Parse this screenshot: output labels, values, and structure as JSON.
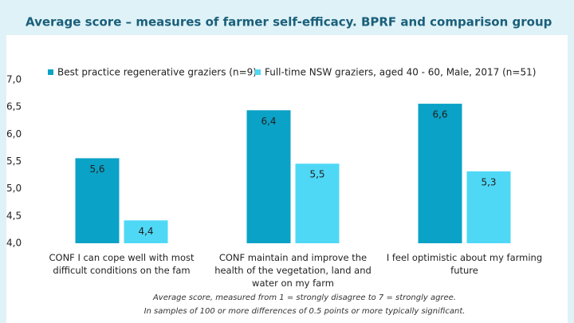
{
  "chart_data": {
    "type": "bar",
    "title": "Average score – measures of farmer self-efficacy. BPRF and comparison group",
    "categories": [
      "CONF I can cope well with most difficult conditions on the fam",
      "CONF maintain and improve the health of the vegetation, land and water on my farm",
      "I feel optimistic about my farming future"
    ],
    "series": [
      {
        "name": "Best practice regenerative graziers (n=9)",
        "color": "#0aa2c6",
        "values": [
          5.56,
          6.44,
          6.56
        ],
        "value_labels": [
          "5,6",
          "6,4",
          "6,6"
        ]
      },
      {
        "name": "Full-time NSW graziers, aged 40 - 60, Male, 2017 (n=51)",
        "color": "#4fd8f5",
        "values": [
          4.42,
          5.46,
          5.32
        ],
        "value_labels": [
          "4,4",
          "5,5",
          "5,3"
        ]
      }
    ],
    "ylim": [
      4,
      7
    ],
    "yticks": [
      {
        "value": 4,
        "label": "4,0"
      },
      {
        "value": 4.5,
        "label": "4,5"
      },
      {
        "value": 5,
        "label": "5,0"
      },
      {
        "value": 5.5,
        "label": "5,5"
      },
      {
        "value": 6,
        "label": "6,0"
      },
      {
        "value": 6.5,
        "label": "6,5"
      },
      {
        "value": 7,
        "label": "7,0"
      }
    ],
    "grid": false,
    "legend": "top",
    "footnote": [
      "Average score, measured from 1 = strongly disagree to 7 = strongly agree.",
      "In samples of 100 or more differences of 0.5 points or more typically significant."
    ]
  }
}
